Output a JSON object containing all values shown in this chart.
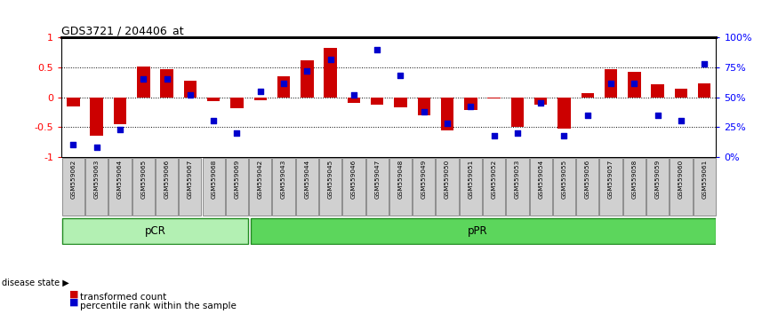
{
  "title": "GDS3721 / 204406_at",
  "samples": [
    "GSM559062",
    "GSM559063",
    "GSM559064",
    "GSM559065",
    "GSM559066",
    "GSM559067",
    "GSM559068",
    "GSM559069",
    "GSM559042",
    "GSM559043",
    "GSM559044",
    "GSM559045",
    "GSM559046",
    "GSM559047",
    "GSM559048",
    "GSM559049",
    "GSM559050",
    "GSM559051",
    "GSM559052",
    "GSM559053",
    "GSM559054",
    "GSM559055",
    "GSM559056",
    "GSM559057",
    "GSM559058",
    "GSM559059",
    "GSM559060",
    "GSM559061"
  ],
  "transformed_count": [
    -0.15,
    -0.65,
    -0.45,
    0.52,
    0.47,
    0.27,
    -0.07,
    -0.18,
    -0.05,
    0.35,
    0.62,
    0.83,
    -0.1,
    -0.12,
    -0.17,
    -0.3,
    -0.55,
    -0.22,
    -0.02,
    -0.5,
    -0.12,
    -0.52,
    0.07,
    0.47,
    0.42,
    0.22,
    0.15,
    0.23
  ],
  "percentile_rank": [
    10,
    8,
    23,
    65,
    65,
    52,
    30,
    20,
    55,
    62,
    72,
    82,
    52,
    90,
    68,
    38,
    28,
    42,
    18,
    20,
    45,
    18,
    35,
    62,
    62,
    35,
    30,
    78
  ],
  "pCR_count": 8,
  "pPR_count": 20,
  "ylim": [
    -1,
    1
  ],
  "yticks_left": [
    -1,
    -0.5,
    0,
    0.5,
    1
  ],
  "yticks_right": [
    0,
    25,
    50,
    75,
    100
  ],
  "bar_color": "#cc0000",
  "dot_color": "#0000cc",
  "pCR_color": "#b3f0b3",
  "pPR_color": "#5cd65c",
  "label_bg_color": "#d0d0d0",
  "disease_state_label": "disease state",
  "pCR_label": "pCR",
  "pPR_label": "pPR",
  "legend_bar_label": "transformed count",
  "legend_dot_label": "percentile rank within the sample"
}
